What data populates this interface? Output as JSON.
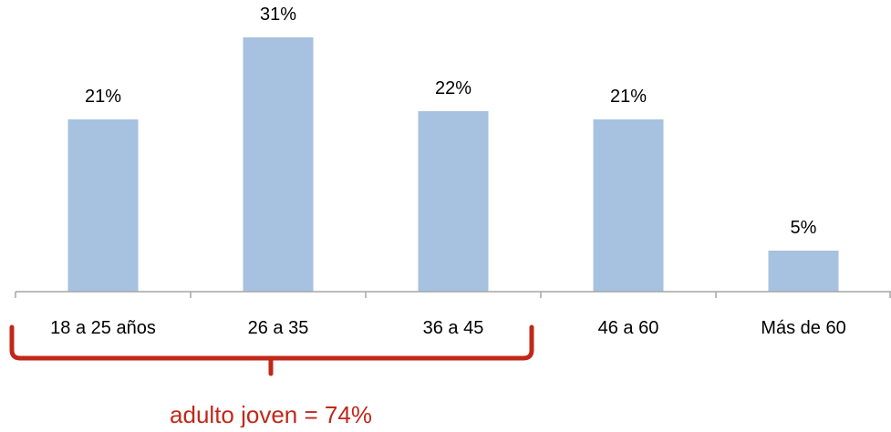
{
  "chart_data": {
    "type": "bar",
    "categories": [
      "18 a 25 años",
      "26 a 35",
      "36 a 45",
      "46 a 60",
      "Más de 60"
    ],
    "values": [
      21,
      31,
      22,
      21,
      5
    ],
    "value_labels": [
      "21%",
      "31%",
      "22%",
      "21%",
      "5%"
    ],
    "unit": "%",
    "title": "",
    "xlabel": "",
    "ylabel": "",
    "ylim": [
      0,
      33
    ],
    "grid": false,
    "legend": "none",
    "bar_color": "#a7c1e0",
    "axis_color": "#a6a6a6",
    "annotations": [
      {
        "text": "adulto joven = 74%",
        "type": "brace",
        "spans_categories": [
          "18 a 25 años",
          "26 a 35",
          "36 a 45"
        ],
        "color": "#c0281a"
      }
    ]
  }
}
